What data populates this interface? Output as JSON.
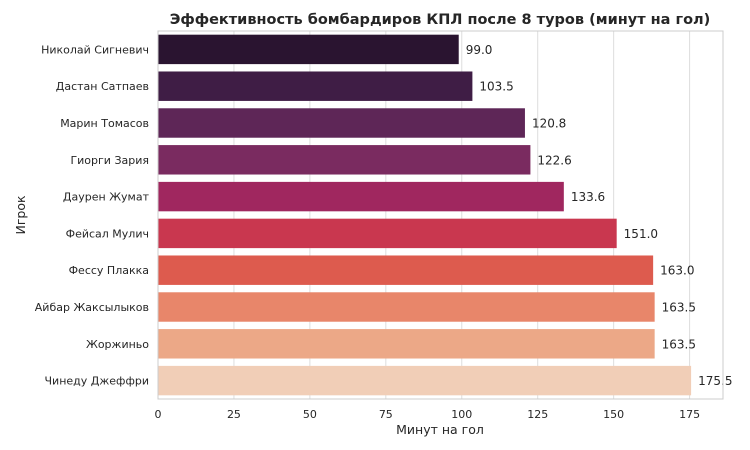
{
  "chart_data": {
    "type": "bar",
    "orientation": "horizontal",
    "title": "Эффективность бомбардиров КПЛ после 8 туров (минут на гол)",
    "xlabel": "Минут на гол",
    "ylabel": "Игрок",
    "categories": [
      "Николай Сигневич",
      "Дастан Сатпаев",
      "Марин Томасов",
      "Гиорги Зария",
      "Даурен Жумат",
      "Фейсал Мулич",
      "Фессу Плакка",
      "Айбар Жаксылыков",
      "Жоржиньо",
      "Чинеду Джеффри"
    ],
    "values": [
      99.0,
      103.5,
      120.8,
      122.6,
      133.6,
      151.0,
      163.0,
      163.5,
      163.5,
      175.5
    ],
    "value_labels": [
      "99.0",
      "103.5",
      "120.8",
      "122.6",
      "133.6",
      "151.0",
      "163.0",
      "163.5",
      "163.5",
      "175.5"
    ],
    "xlim": [
      0,
      186
    ],
    "xticks": [
      0,
      25,
      50,
      75,
      100,
      125,
      150,
      175
    ],
    "grid": true,
    "colors": [
      "#2a1430",
      "#3f1d45",
      "#5e2657",
      "#7a2b60",
      "#a0275f",
      "#c9374f",
      "#dd5b4e",
      "#e8866a",
      "#eca887",
      "#f1ceb7"
    ]
  }
}
